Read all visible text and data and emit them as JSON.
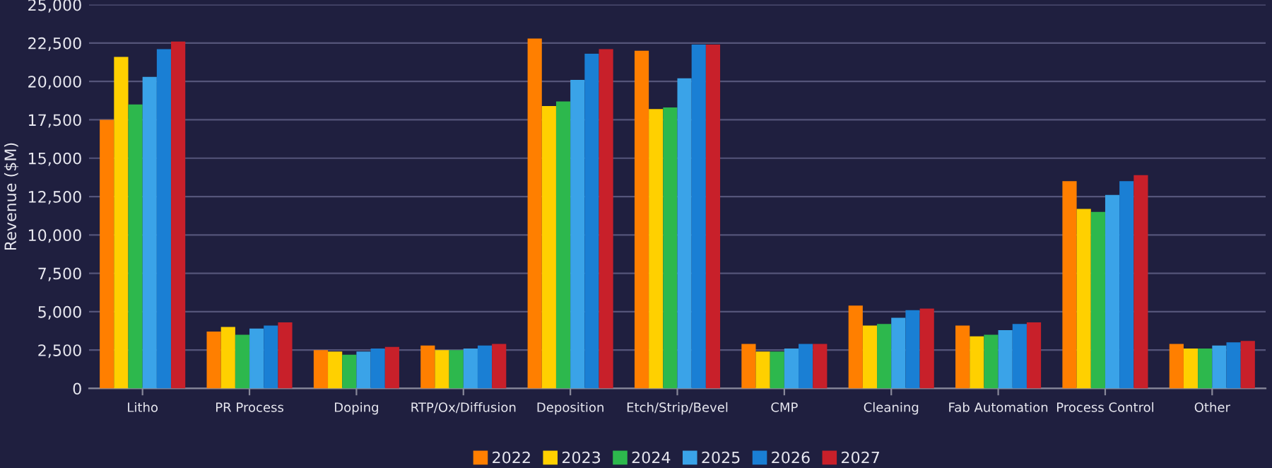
{
  "chart_data": {
    "type": "bar",
    "ylabel": "Revenue ($M)",
    "categories": [
      "Litho",
      "PR Process",
      "Doping",
      "RTP/Ox/Diffusion",
      "Deposition",
      "Etch/Strip/Bevel",
      "CMP",
      "Cleaning",
      "Fab Automation",
      "Process Control",
      "Other"
    ],
    "series": [
      {
        "name": "2022",
        "color": "#ff7f00",
        "values": [
          17500,
          3700,
          2500,
          2800,
          22800,
          22000,
          2900,
          5400,
          4100,
          13500,
          2900
        ]
      },
      {
        "name": "2023",
        "color": "#ffd000",
        "values": [
          21600,
          4000,
          2400,
          2500,
          18400,
          18200,
          2400,
          4100,
          3400,
          11700,
          2600
        ]
      },
      {
        "name": "2024",
        "color": "#2db84d",
        "values": [
          18500,
          3500,
          2200,
          2500,
          18700,
          18300,
          2400,
          4200,
          3500,
          11500,
          2600
        ]
      },
      {
        "name": "2025",
        "color": "#3aa3e8",
        "values": [
          20300,
          3900,
          2400,
          2600,
          20100,
          20200,
          2600,
          4600,
          3800,
          12600,
          2800
        ]
      },
      {
        "name": "2026",
        "color": "#1a7fd4",
        "values": [
          22100,
          4100,
          2600,
          2800,
          21800,
          22400,
          2900,
          5100,
          4200,
          13500,
          3000
        ]
      },
      {
        "name": "2027",
        "color": "#c8202a",
        "values": [
          22600,
          4300,
          2700,
          2900,
          22100,
          22400,
          2900,
          5200,
          4300,
          13900,
          3100
        ]
      }
    ],
    "ylim": [
      0,
      25000
    ],
    "yticks": [
      {
        "value": 0,
        "label": "0"
      },
      {
        "value": 2500,
        "label": "2,500"
      },
      {
        "value": 5000,
        "label": "5,000"
      },
      {
        "value": 7500,
        "label": "7,500"
      },
      {
        "value": 10000,
        "label": "10,000"
      },
      {
        "value": 12500,
        "label": "12,500"
      },
      {
        "value": 15000,
        "label": "15,000"
      },
      {
        "value": 17500,
        "label": "17,500"
      },
      {
        "value": 20000,
        "label": "20,000"
      },
      {
        "value": 22500,
        "label": "22,500"
      },
      {
        "value": 25000,
        "label": "25,000"
      }
    ],
    "grid": "y",
    "legend": "bottom"
  }
}
